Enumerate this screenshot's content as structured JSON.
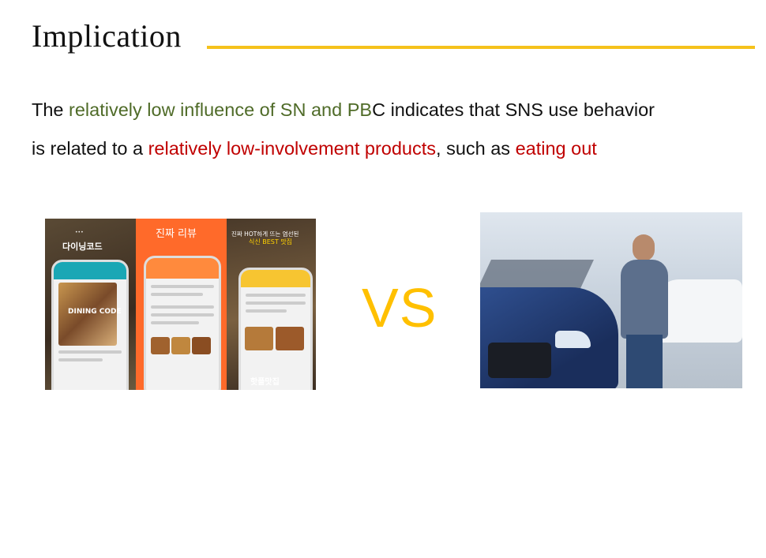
{
  "slide": {
    "title": "Implication",
    "line1": {
      "part1": "The ",
      "highlight1": "relatively low influence of SN and PB",
      "part2": "C indicates that SNS use behavior"
    },
    "line2": {
      "part1": "is related to a ",
      "highlight1": "relatively low-involvement products",
      "part2": ", such as ",
      "highlight2": "eating out"
    },
    "vs_label": "VS"
  },
  "colors": {
    "accent_rule": "#f5c21b",
    "highlight_green": "#4f6b28",
    "highlight_red": "#c00000",
    "vs": "#ffc000"
  },
  "left_image": {
    "panel1_text": "다이닝코드",
    "panel1_sub": "DINING CODE",
    "panel2_text": "진짜 리뷰",
    "panel3_text": "진짜 HOT하게 뜨는 염선된",
    "panel3_sub": "식신 BEST 맛집",
    "panel3_bottom": "핫플맛집"
  }
}
